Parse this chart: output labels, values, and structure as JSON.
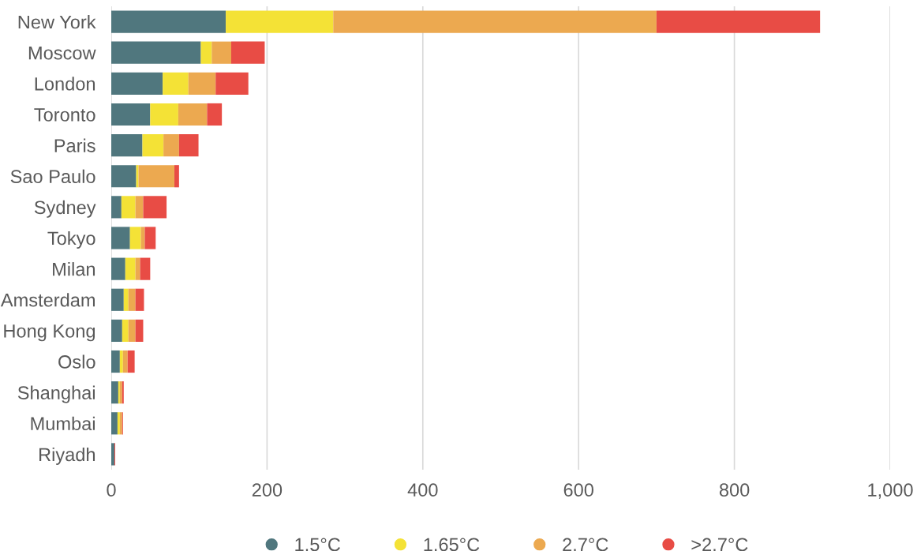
{
  "chart_data": {
    "type": "bar",
    "orientation": "horizontal",
    "stacked": true,
    "categories": [
      "New York",
      "Moscow",
      "London",
      "Toronto",
      "Paris",
      "Sao Paulo",
      "Sydney",
      "Tokyo",
      "Milan",
      "Amsterdam",
      "Hong Kong",
      "Oslo",
      "Shanghai",
      "Mumbai",
      "Riyadh"
    ],
    "series": [
      {
        "name": "1.5°C",
        "color": "#50777e",
        "values": [
          147,
          115,
          66,
          50,
          40,
          32,
          13,
          24,
          18,
          16,
          14,
          11,
          9,
          8,
          4
        ]
      },
      {
        "name": "1.65°C",
        "color": "#f4e236",
        "values": [
          138,
          14,
          33,
          36,
          27,
          3,
          18,
          14,
          13,
          6,
          8,
          4,
          2,
          3,
          0
        ]
      },
      {
        "name": "2.7°C",
        "color": "#eca950",
        "values": [
          415,
          25,
          35,
          37,
          20,
          46,
          10,
          5,
          6,
          9,
          9,
          6,
          3,
          3,
          0
        ]
      },
      {
        "name": ">2.7°C",
        "color": "#e84c45",
        "values": [
          210,
          43,
          42,
          19,
          25,
          6,
          30,
          14,
          13,
          11,
          10,
          9,
          2,
          1,
          1
        ]
      }
    ],
    "xlim": [
      0,
      1000
    ],
    "xticks": [
      0,
      200,
      400,
      600,
      800,
      {
        "value": 1000,
        "label": "1,000"
      }
    ],
    "grid": "x",
    "legend": "bottom"
  }
}
